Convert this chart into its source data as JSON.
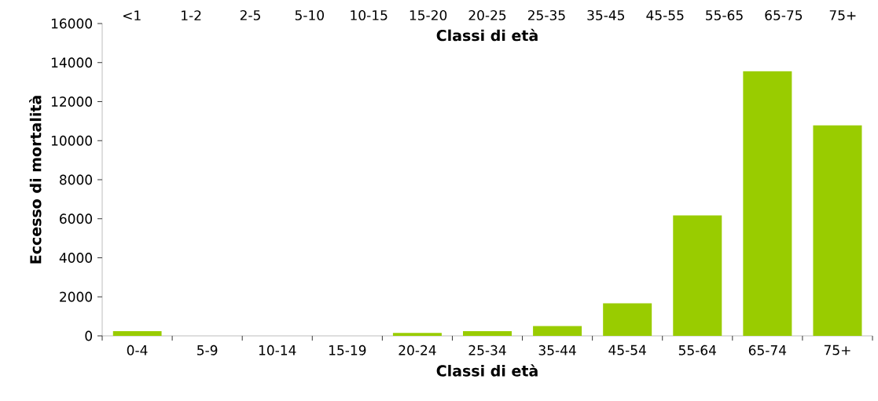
{
  "chart_data": {
    "type": "bar",
    "xlabel": "Classi di età",
    "ylabel": "Eccesso di mortalità",
    "x2label": "Classi di età",
    "categories": [
      "0-4",
      "5-9",
      "10-14",
      "15-19",
      "20-24",
      "25-34",
      "35-44",
      "45-54",
      "55-64",
      "65-74",
      "75+"
    ],
    "values": [
      240,
      0,
      0,
      0,
      150,
      240,
      500,
      1670,
      6170,
      13560,
      10780
    ],
    "color": "#99cc00",
    "ylim": [
      0,
      16000
    ],
    "yticks": [
      0,
      2000,
      4000,
      6000,
      8000,
      10000,
      12000,
      14000,
      16000
    ],
    "annotations": [
      "<1",
      "1-2",
      "2-5",
      "5-10",
      "10-15",
      "15-20",
      "20-25",
      "25-35",
      "35-45",
      "45-55",
      "55-65",
      "65-75",
      "75+"
    ]
  }
}
